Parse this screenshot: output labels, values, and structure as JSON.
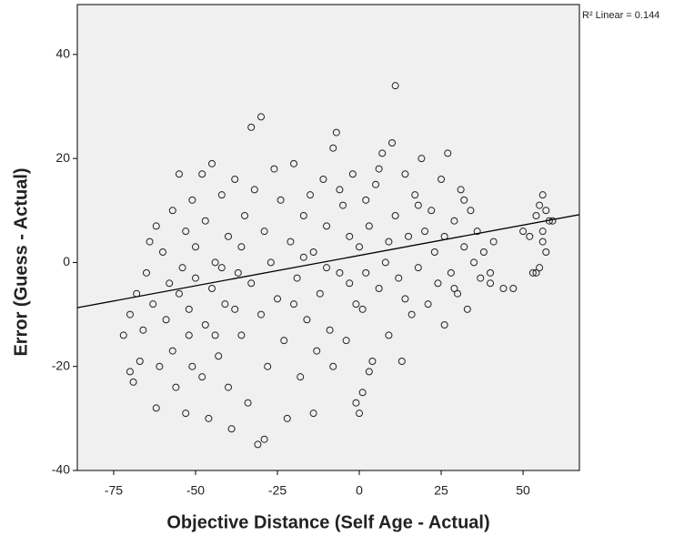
{
  "chart_data": {
    "type": "scatter",
    "xlabel": "Objective Distance (Self Age - Actual)",
    "ylabel": "Error (Guess - Actual)",
    "annotation": "R² Linear = 0.144",
    "xlim": [
      -86.1,
      67.2
    ],
    "ylim": [
      -40,
      49.6
    ],
    "xticks": [
      -75,
      -50,
      -25,
      0,
      25,
      50
    ],
    "yticks": [
      -40,
      -20,
      0,
      20,
      40
    ],
    "color": "#222222",
    "background": "#f0f0f0",
    "x": [
      -72,
      -70,
      -70,
      -69,
      -68,
      -67,
      -66,
      -65,
      -64,
      -63,
      -62,
      -62,
      -61,
      -60,
      -59,
      -58,
      -57,
      -57,
      -56,
      -55,
      -55,
      -54,
      -53,
      -53,
      -52,
      -51,
      -51,
      -50,
      -50,
      -52,
      -48,
      -47,
      -47,
      -46,
      -45,
      -45,
      -44,
      -43,
      -42,
      -41,
      -40,
      -40,
      -39,
      -38,
      -37,
      -36,
      -35,
      -34,
      -33,
      -33,
      -32,
      -31,
      -30,
      -29,
      -30,
      -29,
      -28,
      -27,
      -26,
      -25,
      -44,
      -48,
      -36,
      -42,
      -38,
      -24,
      -23,
      -22,
      -21,
      -20,
      -19,
      -18,
      -17,
      -16,
      -15,
      -14,
      -13,
      -12,
      -11,
      -10,
      -9,
      -8,
      -7,
      -6,
      -5,
      -4,
      -3,
      -2,
      -1,
      -14,
      -20,
      -10,
      -6,
      -17,
      -3,
      -8,
      0,
      1,
      1,
      2,
      3,
      4,
      3,
      5,
      6,
      7,
      8,
      9,
      10,
      11,
      11,
      12,
      13,
      14,
      15,
      16,
      17,
      18,
      19,
      20,
      21,
      22,
      23,
      24,
      -1,
      0,
      6,
      2,
      9,
      14,
      18,
      25,
      26,
      27,
      28,
      29,
      30,
      31,
      32,
      33,
      34,
      35,
      36,
      37,
      38,
      40,
      40,
      41,
      26,
      29,
      32,
      44,
      47,
      50,
      52,
      53,
      54,
      55,
      55,
      56,
      56,
      57,
      58,
      57,
      54,
      56,
      59
    ],
    "y": [
      -14,
      -10,
      -21,
      -23,
      -6,
      -19,
      -13,
      -2,
      4,
      -8,
      7,
      -28,
      -20,
      2,
      -11,
      -4,
      10,
      -17,
      -24,
      17,
      -6,
      -1,
      6,
      -29,
      -14,
      12,
      -20,
      -3,
      3,
      -9,
      17,
      8,
      -12,
      -30,
      -5,
      19,
      0,
      -18,
      13,
      -8,
      -24,
      5,
      -32,
      16,
      -2,
      -14,
      9,
      -27,
      26,
      -4,
      14,
      -35,
      28,
      -34,
      -10,
      6,
      -20,
      0,
      18,
      -7,
      -14,
      -22,
      3,
      -1,
      -9,
      12,
      -15,
      -30,
      4,
      19,
      -3,
      -22,
      9,
      -11,
      13,
      2,
      -17,
      -6,
      16,
      7,
      -13,
      22,
      25,
      -2,
      11,
      -15,
      5,
      17,
      -8,
      -29,
      -8,
      -1,
      14,
      1,
      -4,
      -20,
      3,
      -9,
      -25,
      12,
      -21,
      -19,
      7,
      15,
      -5,
      21,
      0,
      -14,
      23,
      34,
      9,
      -3,
      -19,
      17,
      5,
      -10,
      13,
      -1,
      20,
      6,
      -8,
      10,
      2,
      -4,
      -27,
      -29,
      18,
      -2,
      4,
      -7,
      11,
      16,
      -12,
      21,
      -2,
      8,
      -6,
      14,
      3,
      -9,
      10,
      0,
      6,
      -3,
      2,
      -2,
      -4,
      4,
      5,
      -5,
      12,
      -5,
      -5,
      6,
      5,
      -2,
      9,
      -1,
      11,
      13,
      4,
      2,
      8,
      10,
      -2,
      6,
      8
    ],
    "fit_line": {
      "x": [
        -86.1,
        67.2
      ],
      "y": [
        -8.7,
        9.2
      ]
    }
  }
}
